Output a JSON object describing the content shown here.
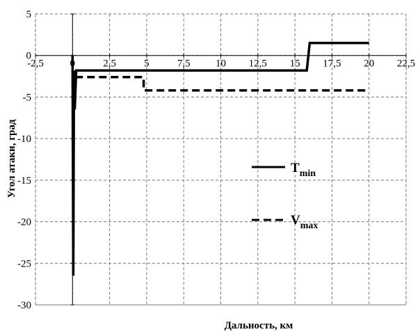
{
  "chart_data": {
    "type": "line",
    "title": "",
    "xlabel": "Дальность, км",
    "ylabel": "Угол атаки, град",
    "xlim": [
      -2.5,
      22.5
    ],
    "ylim": [
      -30,
      5
    ],
    "x_ticks": [
      "-2,5",
      "0",
      "2,5",
      "5",
      "7,5",
      "10",
      "12,5",
      "15",
      "17,5",
      "20",
      "22,5"
    ],
    "x_tick_values": [
      -2.5,
      0,
      2.5,
      5,
      7.5,
      10,
      12.5,
      15,
      17.5,
      20,
      22.5
    ],
    "y_ticks": [
      "5",
      "0",
      "-5",
      "-10",
      "-15",
      "-20",
      "-25",
      "-30"
    ],
    "y_tick_values": [
      5,
      0,
      -5,
      -10,
      -15,
      -20,
      -25,
      -30
    ],
    "grid": true,
    "legend_position": "right",
    "series": [
      {
        "name": "T",
        "name_sub": "min",
        "style": "solid",
        "x": [
          0,
          0.05,
          0.1,
          0.15,
          0.25,
          15.8,
          16.0,
          20.0
        ],
        "y": [
          0,
          -26.5,
          -1.8,
          -6.5,
          -1.8,
          -1.8,
          1.5,
          1.5
        ]
      },
      {
        "name": "V",
        "name_sub": "max",
        "style": "dashed",
        "x": [
          0.2,
          0.3,
          4.8,
          4.8,
          20.0
        ],
        "y": [
          -2.5,
          -2.6,
          -2.6,
          -4.2,
          -4.2
        ]
      }
    ]
  }
}
